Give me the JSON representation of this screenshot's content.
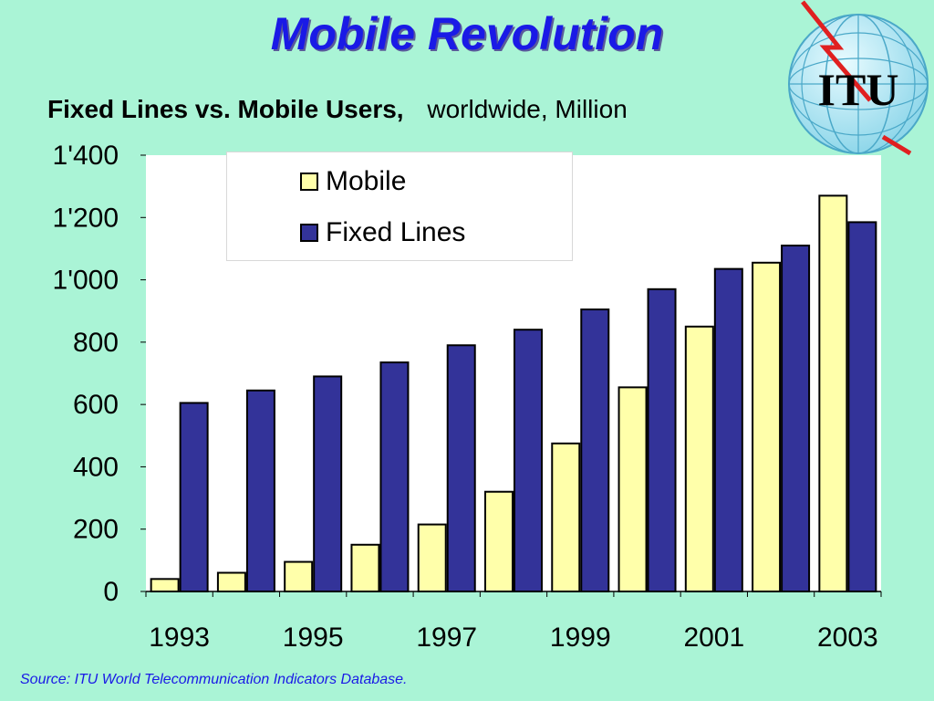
{
  "slide": {
    "title": "Mobile Revolution",
    "subtitle_bold": "Fixed Lines vs. Mobile Users,",
    "subtitle_normal": "worldwide, Million",
    "source": "Source:  ITU World Telecommunication Indicators Database.",
    "logo_text": "ITU",
    "background_color": "#aaf4d6"
  },
  "chart_data": {
    "type": "bar",
    "title": "",
    "xlabel": "",
    "ylabel": "",
    "ylim": [
      0,
      1400
    ],
    "yticks": [
      "0",
      "200",
      "400",
      "600",
      "800",
      "1'000",
      "1'200",
      "1'400"
    ],
    "ytick_values": [
      0,
      200,
      400,
      600,
      800,
      1000,
      1200,
      1400
    ],
    "categories": [
      "1993",
      "1994",
      "1995",
      "1996",
      "1997",
      "1998",
      "1999",
      "2000",
      "2001",
      "2002",
      "2003"
    ],
    "xtick_labels": [
      "1993",
      "",
      "1995",
      "",
      "1997",
      "",
      "1999",
      "",
      "2001",
      "",
      "2003"
    ],
    "legend_position": "top-center",
    "grid": false,
    "series": [
      {
        "name": "Mobile",
        "color": "#ffffaa",
        "values": [
          40,
          60,
          95,
          150,
          215,
          320,
          475,
          655,
          850,
          1055,
          1270
        ]
      },
      {
        "name": "Fixed Lines",
        "color": "#333399",
        "values": [
          605,
          645,
          690,
          735,
          790,
          840,
          905,
          970,
          1035,
          1110,
          1185
        ]
      }
    ]
  }
}
